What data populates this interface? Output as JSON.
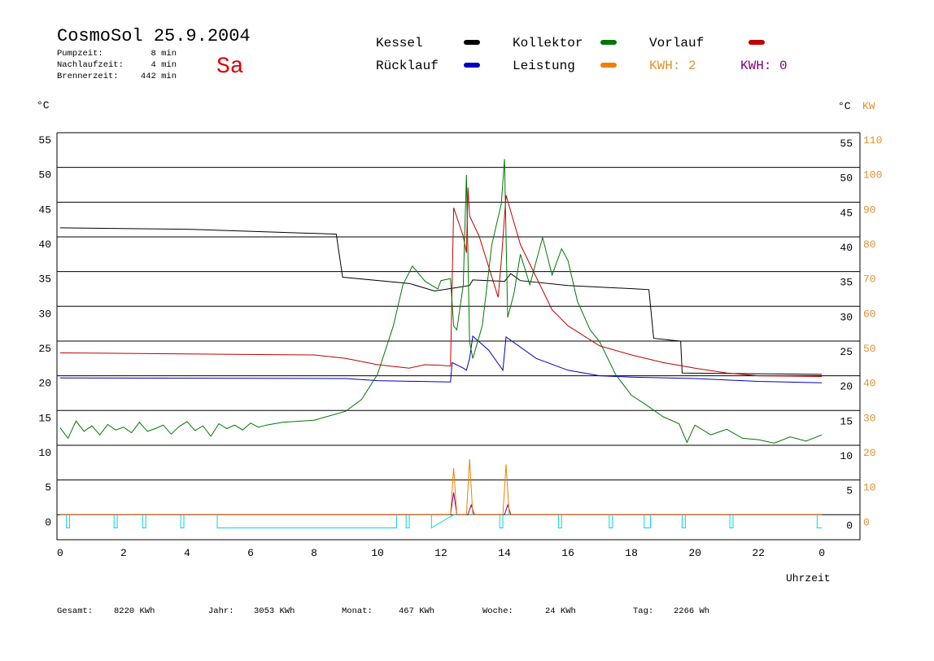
{
  "header": {
    "title": "CosmoSol 25.9.2004",
    "day": "Sa",
    "stats": [
      {
        "label": "Pumpzeit:",
        "value": "8 min"
      },
      {
        "label": "Nachlaufzeit:",
        "value": "4 min"
      },
      {
        "label": "Brennerzeit:",
        "value": "442 min"
      }
    ]
  },
  "chart_data": {
    "type": "line",
    "y_unit": "°C",
    "y2_unit_left": "°C",
    "y2_unit": "KW",
    "xlabel": "Uhrzeit",
    "xlim": [
      -0.1,
      25.2
    ],
    "xticks": [
      0,
      2,
      4,
      6,
      8,
      10,
      12,
      14,
      16,
      18,
      20,
      22,
      {
        "value": 24,
        "label": "0"
      }
    ],
    "ylim": [
      -3.6,
      55
    ],
    "yticks": [
      0,
      5,
      10,
      15,
      20,
      25,
      30,
      35,
      40,
      45,
      50,
      55
    ],
    "y2lim": [
      -7.2,
      110
    ],
    "y2ticks": [
      0,
      10,
      20,
      30,
      40,
      50,
      60,
      70,
      80,
      90,
      100,
      110
    ],
    "grid": true,
    "series": [
      {
        "name": "Kessel",
        "color": "#000000",
        "x": [
          0,
          4,
          8.7,
          8.9,
          11,
          11.8,
          12.5,
          12.9,
          13,
          14,
          14.2,
          14.5,
          16,
          18.2,
          18.55,
          18.7,
          19.3,
          19.55,
          19.6,
          24
        ],
        "values": [
          41.3,
          41.1,
          40.4,
          34.2,
          33.3,
          32.2,
          32.7,
          33,
          33.8,
          33.6,
          34.7,
          33.7,
          33,
          32.5,
          32.4,
          25.4,
          25.1,
          25,
          20.4,
          20.2
        ]
      },
      {
        "name": "Kollektor",
        "color": "#007800",
        "x": [
          0,
          0.25,
          0.5,
          0.75,
          1,
          1.25,
          1.5,
          1.75,
          2,
          2.25,
          2.5,
          2.75,
          3,
          3.25,
          3.5,
          3.75,
          4,
          4.25,
          4.5,
          4.75,
          5,
          5.25,
          5.5,
          5.75,
          6,
          6.25,
          6.5,
          6.75,
          7,
          8,
          9,
          9.5,
          10,
          10.5,
          10.8,
          11.1,
          11.5,
          11.9,
          12,
          12.3,
          12.4,
          12.5,
          12.7,
          12.8,
          12.9,
          13,
          13.3,
          13.6,
          13.9,
          14,
          14.1,
          14.3,
          14.5,
          14.8,
          15.2,
          15.5,
          15.8,
          16,
          16.3,
          16.7,
          17,
          17.5,
          18,
          18.5,
          19,
          19.5,
          19.75,
          20,
          20.5,
          21,
          21.5,
          22,
          22.5,
          23,
          23.5,
          24
        ],
        "values": [
          12.5,
          11,
          13.5,
          12,
          12.8,
          11.5,
          13,
          12.2,
          12.6,
          11.8,
          13.3,
          12,
          12.4,
          12.9,
          11.6,
          12.7,
          13.4,
          12.1,
          12.8,
          11.3,
          13.1,
          12.4,
          12.9,
          12.2,
          13.2,
          12.6,
          12.9,
          13.1,
          13.3,
          13.6,
          14.9,
          16.6,
          20.2,
          27.2,
          33.1,
          35.8,
          33.6,
          32.5,
          33.7,
          34,
          27.2,
          26.6,
          33.1,
          48.9,
          24.9,
          22.5,
          27.2,
          38.9,
          44.8,
          51.2,
          28.4,
          31.9,
          37.5,
          33.1,
          39.9,
          34.5,
          38.3,
          36.6,
          30.7,
          26.6,
          24.9,
          20.2,
          17.2,
          15.7,
          14.1,
          13.1,
          10.4,
          12.9,
          11.5,
          12.3,
          11,
          10.8,
          10.3,
          11.2,
          10.6,
          11.5
        ]
      },
      {
        "name": "Vorlauf",
        "color": "#c00000",
        "x": [
          0,
          8,
          9,
          10,
          11,
          11.5,
          12,
          12.3,
          12.4,
          12.7,
          12.8,
          12.85,
          12.9,
          13.2,
          13.8,
          13.9,
          14.05,
          14.5,
          15,
          15.5,
          16,
          17,
          18,
          19,
          20,
          21,
          22,
          24
        ],
        "values": [
          23.3,
          23,
          22.5,
          21.6,
          21.1,
          21.6,
          21.5,
          21.4,
          44.2,
          40.1,
          37.7,
          47.1,
          43,
          40.1,
          31.3,
          36.6,
          46,
          38.9,
          34.2,
          29.5,
          27.2,
          24.3,
          23,
          21.9,
          21.1,
          20.4,
          20,
          19.9
        ]
      },
      {
        "name": "Rücklauf",
        "color": "#0000c0",
        "x": [
          0,
          9,
          10,
          12.3,
          12.35,
          12.7,
          12.8,
          12.9,
          13,
          13.5,
          13.95,
          14.05,
          15,
          16,
          17,
          18,
          20,
          22,
          24
        ],
        "values": [
          19.7,
          19.6,
          19.3,
          19.1,
          21.9,
          21.1,
          20.8,
          22.5,
          25.7,
          23.7,
          20.8,
          25.6,
          22.5,
          20.8,
          20,
          19.8,
          19.6,
          19.2,
          19
        ]
      },
      {
        "name": "Leistung",
        "color": "#f08000",
        "axis": "y2",
        "x": [
          0,
          12.3,
          12.4,
          12.5,
          12.8,
          12.9,
          13,
          13.95,
          14.05,
          14.15,
          24
        ],
        "values": [
          0,
          0,
          13.4,
          0,
          0,
          16,
          0,
          0,
          14.5,
          0,
          0
        ]
      },
      {
        "color": "#800080",
        "x": [
          0,
          12.3,
          12.4,
          12.5,
          12.85,
          12.95,
          13.05,
          14,
          14.1,
          14.2,
          24
        ],
        "values": [
          0,
          0,
          3.2,
          0,
          0,
          1.4,
          0,
          0,
          1.4,
          0,
          0
        ]
      },
      {
        "color": "#00d8e0",
        "x": [
          0,
          0.2,
          0.2,
          0.3,
          0.3,
          1.7,
          1.7,
          1.8,
          1.8,
          2.6,
          2.6,
          2.7,
          2.7,
          3.8,
          3.8,
          3.9,
          3.9,
          4.95,
          4.95,
          10.6,
          10.6,
          10.9,
          10.9,
          11,
          11,
          11.7,
          11.7,
          12.4,
          13.85,
          13.85,
          13.95,
          13.95,
          15.7,
          15.7,
          15.8,
          15.8,
          17.3,
          17.3,
          17.4,
          17.4,
          18.4,
          18.4,
          18.6,
          18.6,
          19.6,
          19.6,
          19.7,
          19.7,
          21.1,
          21.1,
          21.2,
          21.2,
          23.85,
          23.85,
          24
        ],
        "values": [
          0,
          0,
          -1.9,
          -1.9,
          0,
          0,
          -1.9,
          -1.9,
          0,
          0,
          -1.9,
          -1.9,
          0,
          0,
          -1.9,
          -1.9,
          0,
          0,
          -1.9,
          -1.9,
          0,
          0,
          -1.9,
          -1.9,
          0,
          0,
          -1.9,
          0,
          0,
          -1.9,
          -1.9,
          0,
          0,
          -1.9,
          -1.9,
          0,
          0,
          -1.9,
          -1.9,
          0,
          0,
          -1.9,
          -1.9,
          0,
          0,
          -1.9,
          -1.9,
          0,
          0,
          -1.9,
          -1.9,
          0,
          0,
          -1.9,
          -1.9
        ]
      }
    ],
    "legend_notes": [
      {
        "text": "KWH: 2",
        "color": "#e09030"
      },
      {
        "text": "KWH: 0",
        "color": "#800080"
      }
    ]
  },
  "footer": [
    {
      "label": "Gesamt:",
      "value": "8220 KWh"
    },
    {
      "label": "Jahr:",
      "value": "3053 KWh"
    },
    {
      "label": "Monat:",
      "value": "467 KWh"
    },
    {
      "label": "Woche:",
      "value": "24 KWh"
    },
    {
      "label": "Tag:",
      "value": "2266 Wh"
    }
  ]
}
